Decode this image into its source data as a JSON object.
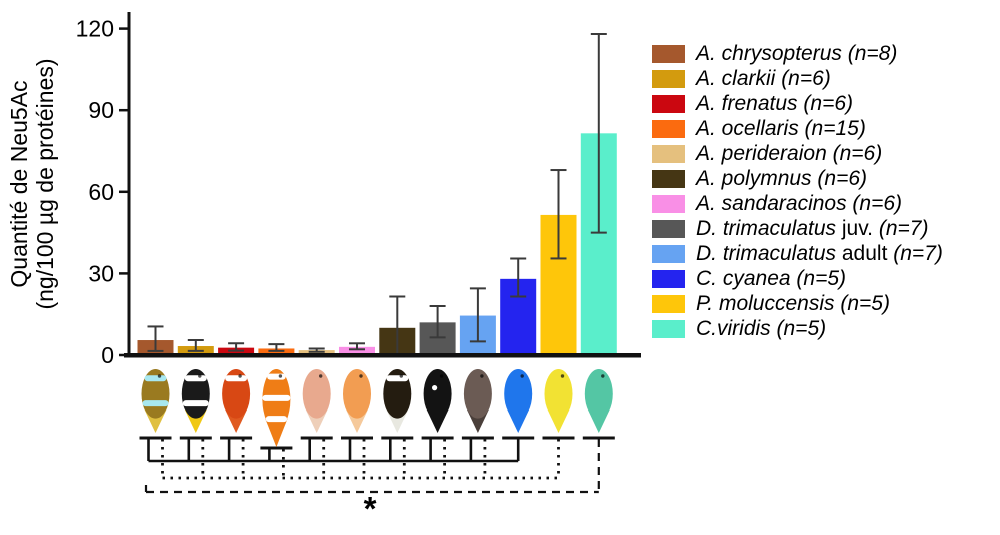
{
  "figure": {
    "background": "#ffffff"
  },
  "y_axis": {
    "title_line1": "Quantité de Neu5Ac",
    "title_line2": "(ng/100 µg de protéines)"
  },
  "chart_data": {
    "type": "bar",
    "title": "",
    "ylabel": "Quantité de Neu5Ac (ng/100 µg de protéines)",
    "xlabel": "",
    "ylim": [
      0,
      120
    ],
    "yticks": [
      0,
      30,
      60,
      90,
      120
    ],
    "grid": false,
    "legend_position": "right-outside",
    "categories": [
      "A. chrysopterus",
      "A. clarkii",
      "A. frenatus",
      "A. ocellaris",
      "A. perideraion",
      "A. sandaracinos",
      "A. polymnus",
      "D. trimaculatus juv.",
      "D. trimaculatus adult",
      "C. cyanea",
      "P. moluccensis",
      "C.viridis"
    ],
    "values": [
      5.5,
      3.3,
      2.7,
      2.4,
      1.8,
      3.0,
      10,
      12,
      14.5,
      28,
      51.5,
      81.5
    ],
    "error_low": [
      1.5,
      1.5,
      1.6,
      1.5,
      1.2,
      2.1,
      0,
      6.5,
      5,
      21.5,
      35.5,
      45
    ],
    "error_high": [
      10.5,
      5.5,
      4.3,
      4,
      2.4,
      4.3,
      21.5,
      18,
      24.5,
      35.5,
      68,
      118
    ],
    "bar_colors": [
      "#A5582D",
      "#D39B0E",
      "#CB0710",
      "#FB6B0F",
      "#E5C07E",
      "#F98FE6",
      "#453614",
      "#575757",
      "#66A3F2",
      "#2424EF",
      "#FEC60A",
      "#5AEECB"
    ],
    "error_bar_color": "#3a3a3a",
    "axis_color": "#111111"
  },
  "legend": {
    "items": [
      {
        "id": "chrysopterus",
        "name": "A. chrysopterus",
        "suffix": "",
        "count": "(n=8)",
        "color": "#A5582D"
      },
      {
        "id": "clarkii",
        "name": "A. clarkii",
        "suffix": "",
        "count": "(n=6)",
        "color": "#D39B0E"
      },
      {
        "id": "frenatus",
        "name": "A. frenatus",
        "suffix": "",
        "count": "(n=6)",
        "color": "#CB0710"
      },
      {
        "id": "ocellaris",
        "name": "A. ocellaris",
        "suffix": "",
        "count": "(n=15)",
        "color": "#FB6B0F"
      },
      {
        "id": "perideraion",
        "name": "A. perideraion",
        "suffix": "",
        "count": "(n=6)",
        "color": "#E5C07E"
      },
      {
        "id": "polymnus",
        "name": "A. polymnus",
        "suffix": "",
        "count": "(n=6)",
        "color": "#453614"
      },
      {
        "id": "sandaracinos",
        "name": "A. sandaracinos",
        "suffix": "",
        "count": "(n=6)",
        "color": "#F98FE6"
      },
      {
        "id": "trimaculatus-juv",
        "name": "D. trimaculatus",
        "suffix": "juv.",
        "count": "(n=7)",
        "color": "#575757"
      },
      {
        "id": "trimaculatus-adult",
        "name": "D. trimaculatus",
        "suffix": "adult",
        "count": "(n=7)",
        "color": "#66A3F2"
      },
      {
        "id": "cyanea",
        "name": "C. cyanea",
        "suffix": "",
        "count": "(n=5)",
        "color": "#2424EF"
      },
      {
        "id": "moluccensis",
        "name": "P. moluccensis",
        "suffix": "",
        "count": "(n=5)",
        "color": "#FEC60A"
      },
      {
        "id": "viridis",
        "name": "C.viridis",
        "suffix": "",
        "count": "(n=5)",
        "color": "#5AEECB"
      }
    ]
  },
  "fish": [
    {
      "id": "chrysopterus",
      "body": "#9a7a20",
      "tail": "#e0c040",
      "stripe": "#a8e8f0",
      "stripes": 2
    },
    {
      "id": "clarkii",
      "body": "#1a1a1a",
      "tail": "#f0c814",
      "stripe": "#ffffff",
      "stripes": 2
    },
    {
      "id": "frenatus",
      "body": "#d84814",
      "tail": "#e05a20",
      "stripe": "#ffffff",
      "stripes": 1
    },
    {
      "id": "ocellaris",
      "body": "#ef7d16",
      "tail": "#ef7d16",
      "stripe": "#ffffff",
      "stripes": 3,
      "long": true
    },
    {
      "id": "perideraion",
      "body": "#e8a98e",
      "tail": "#eecfb9",
      "stripe": "",
      "stripes": 0
    },
    {
      "id": "sandaracinos",
      "body": "#f29d52",
      "tail": "#f5c99b",
      "stripe": "",
      "stripes": 0
    },
    {
      "id": "polymnus",
      "body": "#241c10",
      "tail": "#e8e8e0",
      "stripe": "#ffffff",
      "stripes": 1
    },
    {
      "id": "trimaculatus-juv",
      "body": "#131313",
      "tail": "#131313",
      "stripe": "",
      "stripes": 0,
      "spot": true
    },
    {
      "id": "trimaculatus-adult",
      "body": "#6b5b54",
      "tail": "#4a3f3a",
      "stripe": "",
      "stripes": 0
    },
    {
      "id": "cyanea",
      "body": "#1f76ec",
      "tail": "#1f76ec",
      "stripe": "",
      "stripes": 0
    },
    {
      "id": "moluccensis",
      "body": "#f2e233",
      "tail": "#f2e233",
      "stripe": "",
      "stripes": 0
    },
    {
      "id": "viridis",
      "body": "#54c6a4",
      "tail": "#54c6a4",
      "stripe": "",
      "stripes": 0
    }
  ],
  "comparisons": {
    "solid_bracket": {
      "style": "solid",
      "members": [
        0,
        1,
        2,
        3,
        4,
        5,
        6,
        7,
        8
      ],
      "reference_index": 9,
      "reference": "C. cyanea"
    },
    "dotted_bracket": {
      "style": "dotted",
      "members": [
        0,
        1,
        2,
        3,
        4,
        5,
        6,
        7,
        8
      ],
      "reference_index": 10,
      "reference": "P. moluccensis"
    },
    "dashed_bracket": {
      "style": "dashed",
      "members": [],
      "reference_index": 11,
      "reference": "C.viridis"
    },
    "significance_label": "*"
  }
}
